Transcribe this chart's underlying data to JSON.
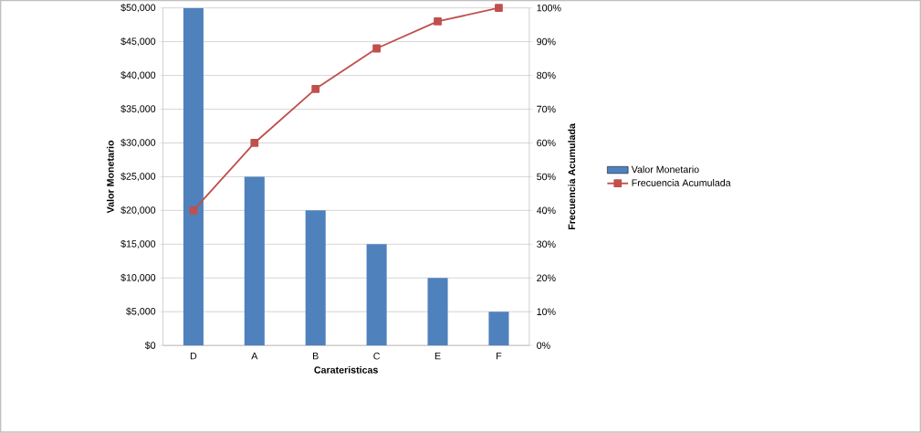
{
  "chart_data": {
    "type": "bar",
    "xlabel": "Carateristicas",
    "ylabel": "Valor  Monetario",
    "y2label": "Frecuencia Acumulada",
    "categories": [
      "D",
      "A",
      "B",
      "C",
      "E",
      "F"
    ],
    "series": [
      {
        "name": "Valor Monetario",
        "color": "#4f81bd",
        "values": [
          50000,
          25000,
          20000,
          15000,
          10000,
          5000
        ]
      },
      {
        "name": "Frecuencia Acumulada",
        "type": "line",
        "axis": "y2",
        "color": "#c0504d",
        "values": [
          40,
          60,
          76,
          88,
          96,
          100
        ]
      }
    ],
    "ylim": [
      0,
      50000
    ],
    "yticks": [
      {
        "value": 0,
        "label": "$0"
      },
      {
        "value": 5000,
        "label": "$5,000"
      },
      {
        "value": 10000,
        "label": "$10,000"
      },
      {
        "value": 15000,
        "label": "$15,000"
      },
      {
        "value": 20000,
        "label": "$20,000"
      },
      {
        "value": 25000,
        "label": "$25,000"
      },
      {
        "value": 30000,
        "label": "$30,000"
      },
      {
        "value": 35000,
        "label": "$35,000"
      },
      {
        "value": 40000,
        "label": "$40,000"
      },
      {
        "value": 45000,
        "label": "$45,000"
      },
      {
        "value": 50000,
        "label": "$50,000"
      }
    ],
    "y2lim": [
      0,
      100
    ],
    "y2ticks": [
      {
        "value": 0,
        "label": "0%"
      },
      {
        "value": 10,
        "label": "10%"
      },
      {
        "value": 20,
        "label": "20%"
      },
      {
        "value": 30,
        "label": "30%"
      },
      {
        "value": 40,
        "label": "40%"
      },
      {
        "value": 50,
        "label": "50%"
      },
      {
        "value": 60,
        "label": "60%"
      },
      {
        "value": 70,
        "label": "70%"
      },
      {
        "value": 80,
        "label": "80%"
      },
      {
        "value": 90,
        "label": "90%"
      },
      {
        "value": 100,
        "label": "100%"
      }
    ],
    "grid": "y",
    "legend": "right",
    "marker": "square",
    "line_style": "solid"
  }
}
